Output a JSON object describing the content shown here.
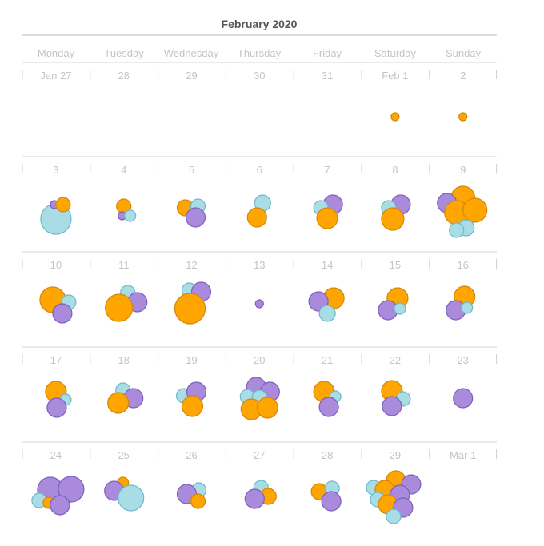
{
  "chart_data": {
    "type": "calendar-bubble",
    "title": "February 2020",
    "weekdays": [
      "Monday",
      "Tuesday",
      "Wednesday",
      "Thursday",
      "Friday",
      "Saturday",
      "Sunday"
    ],
    "colors": {
      "orange": "#FFA500",
      "purple": "#A98ADB",
      "blue": "#A9DDE6"
    },
    "stroke_colors": {
      "orange": "#D4870A",
      "purple": "#7E5FBF",
      "blue": "#6DB8CC"
    },
    "weeks": [
      [
        {
          "label": "Jan 27",
          "bubbles": []
        },
        {
          "label": "28",
          "bubbles": []
        },
        {
          "label": "29",
          "bubbles": []
        },
        {
          "label": "30",
          "bubbles": []
        },
        {
          "label": "31",
          "bubbles": []
        },
        {
          "label": "Feb 1",
          "bubbles": [
            {
              "c": "orange",
              "v": 1
            }
          ]
        },
        {
          "label": "2",
          "bubbles": [
            {
              "c": "orange",
              "v": 1
            }
          ]
        }
      ],
      [
        {
          "label": "3",
          "bubbles": [
            {
              "c": "blue",
              "v": 13
            },
            {
              "c": "purple",
              "v": 1
            },
            {
              "c": "orange",
              "v": 3
            }
          ]
        },
        {
          "label": "4",
          "bubbles": [
            {
              "c": "orange",
              "v": 3
            },
            {
              "c": "purple",
              "v": 1
            },
            {
              "c": "blue",
              "v": 2
            }
          ]
        },
        {
          "label": "5",
          "bubbles": [
            {
              "c": "orange",
              "v": 4
            },
            {
              "c": "blue",
              "v": 3
            },
            {
              "c": "purple",
              "v": 5
            }
          ]
        },
        {
          "label": "6",
          "bubbles": [
            {
              "c": "blue",
              "v": 4
            },
            {
              "c": "orange",
              "v": 5
            }
          ]
        },
        {
          "label": "7",
          "bubbles": [
            {
              "c": "purple",
              "v": 5
            },
            {
              "c": "blue",
              "v": 3
            },
            {
              "c": "orange",
              "v": 6
            }
          ]
        },
        {
          "label": "8",
          "bubbles": [
            {
              "c": "purple",
              "v": 5
            },
            {
              "c": "blue",
              "v": 3
            },
            {
              "c": "orange",
              "v": 7
            }
          ]
        },
        {
          "label": "9",
          "bubbles": [
            {
              "c": "orange",
              "v": 8
            },
            {
              "c": "purple",
              "v": 5
            },
            {
              "c": "orange",
              "v": 8
            },
            {
              "c": "orange",
              "v": 8
            },
            {
              "c": "blue",
              "v": 4
            },
            {
              "c": "blue",
              "v": 3
            }
          ]
        }
      ],
      [
        {
          "label": "10",
          "bubbles": [
            {
              "c": "orange",
              "v": 10
            },
            {
              "c": "blue",
              "v": 3
            },
            {
              "c": "purple",
              "v": 5
            }
          ]
        },
        {
          "label": "11",
          "bubbles": [
            {
              "c": "blue",
              "v": 3
            },
            {
              "c": "purple",
              "v": 5
            },
            {
              "c": "orange",
              "v": 11
            }
          ]
        },
        {
          "label": "12",
          "bubbles": [
            {
              "c": "blue",
              "v": 3
            },
            {
              "c": "purple",
              "v": 5
            },
            {
              "c": "orange",
              "v": 13
            }
          ]
        },
        {
          "label": "13",
          "bubbles": [
            {
              "c": "purple",
              "v": 1
            }
          ]
        },
        {
          "label": "14",
          "bubbles": [
            {
              "c": "orange",
              "v": 6
            },
            {
              "c": "purple",
              "v": 5
            },
            {
              "c": "blue",
              "v": 4
            }
          ]
        },
        {
          "label": "15",
          "bubbles": [
            {
              "c": "orange",
              "v": 6
            },
            {
              "c": "purple",
              "v": 5
            },
            {
              "c": "blue",
              "v": 2
            }
          ]
        },
        {
          "label": "16",
          "bubbles": [
            {
              "c": "orange",
              "v": 6
            },
            {
              "c": "purple",
              "v": 5
            },
            {
              "c": "blue",
              "v": 2
            }
          ]
        }
      ],
      [
        {
          "label": "17",
          "bubbles": [
            {
              "c": "orange",
              "v": 6
            },
            {
              "c": "blue",
              "v": 2
            },
            {
              "c": "purple",
              "v": 5
            }
          ]
        },
        {
          "label": "18",
          "bubbles": [
            {
              "c": "blue",
              "v": 3
            },
            {
              "c": "purple",
              "v": 5
            },
            {
              "c": "orange",
              "v": 6
            }
          ]
        },
        {
          "label": "19",
          "bubbles": [
            {
              "c": "blue",
              "v": 3
            },
            {
              "c": "purple",
              "v": 5
            },
            {
              "c": "orange",
              "v": 6
            }
          ]
        },
        {
          "label": "20",
          "bubbles": [
            {
              "c": "purple",
              "v": 5
            },
            {
              "c": "blue",
              "v": 3
            },
            {
              "c": "purple",
              "v": 5
            },
            {
              "c": "blue",
              "v": 3
            },
            {
              "c": "orange",
              "v": 6
            },
            {
              "c": "orange",
              "v": 6
            }
          ]
        },
        {
          "label": "21",
          "bubbles": [
            {
              "c": "orange",
              "v": 6
            },
            {
              "c": "blue",
              "v": 2
            },
            {
              "c": "purple",
              "v": 5
            }
          ]
        },
        {
          "label": "22",
          "bubbles": [
            {
              "c": "orange",
              "v": 6
            },
            {
              "c": "blue",
              "v": 3
            },
            {
              "c": "purple",
              "v": 5
            }
          ]
        },
        {
          "label": "23",
          "bubbles": [
            {
              "c": "purple",
              "v": 5
            }
          ]
        }
      ],
      [
        {
          "label": "24",
          "bubbles": [
            {
              "c": "purple",
              "v": 10
            },
            {
              "c": "purple",
              "v": 10
            },
            {
              "c": "blue",
              "v": 3
            },
            {
              "c": "orange",
              "v": 2
            },
            {
              "c": "purple",
              "v": 5
            }
          ]
        },
        {
          "label": "25",
          "bubbles": [
            {
              "c": "orange",
              "v": 2
            },
            {
              "c": "purple",
              "v": 5
            },
            {
              "c": "blue",
              "v": 10
            }
          ]
        },
        {
          "label": "26",
          "bubbles": [
            {
              "c": "blue",
              "v": 3
            },
            {
              "c": "purple",
              "v": 5
            },
            {
              "c": "orange",
              "v": 3
            }
          ]
        },
        {
          "label": "27",
          "bubbles": [
            {
              "c": "blue",
              "v": 3
            },
            {
              "c": "orange",
              "v": 4
            },
            {
              "c": "purple",
              "v": 5
            }
          ]
        },
        {
          "label": "28",
          "bubbles": [
            {
              "c": "orange",
              "v": 4
            },
            {
              "c": "blue",
              "v": 3
            },
            {
              "c": "purple",
              "v": 5
            }
          ]
        },
        {
          "label": "29",
          "bubbles": [
            {
              "c": "orange",
              "v": 5
            },
            {
              "c": "purple",
              "v": 5
            },
            {
              "c": "blue",
              "v": 3
            },
            {
              "c": "orange",
              "v": 5
            },
            {
              "c": "purple",
              "v": 5
            },
            {
              "c": "blue",
              "v": 3
            },
            {
              "c": "orange",
              "v": 5
            },
            {
              "c": "purple",
              "v": 5
            },
            {
              "c": "blue",
              "v": 3
            }
          ]
        },
        {
          "label": "Mar 1",
          "bubbles": []
        }
      ]
    ]
  }
}
